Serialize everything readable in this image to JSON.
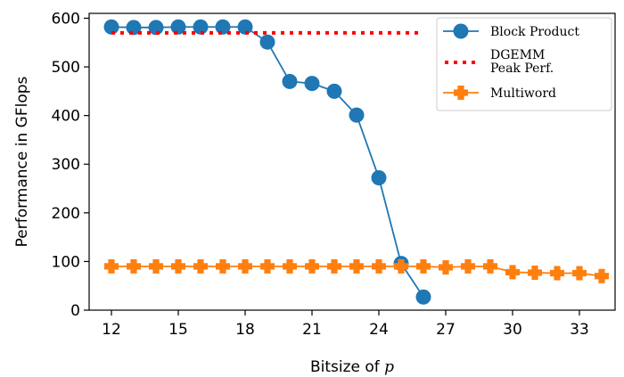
{
  "chart_data": {
    "type": "line",
    "xlabel_text": "Bitsize of ",
    "xlabel_var": "p",
    "ylabel": "Performance in GFlops",
    "xlim": [
      11,
      34.6
    ],
    "ylim": [
      0,
      610
    ],
    "xticks": [
      12,
      15,
      18,
      21,
      24,
      27,
      30,
      33
    ],
    "yticks": [
      0,
      100,
      200,
      300,
      400,
      500,
      600
    ],
    "grid": false,
    "legend_position": "top-right",
    "series": [
      {
        "name": "Block Product",
        "color": "#1f77b4",
        "marker": "circle",
        "style": "solid",
        "x": [
          12,
          13,
          14,
          15,
          16,
          17,
          18,
          19,
          20,
          21,
          22,
          23,
          24,
          25,
          26
        ],
        "y": [
          582,
          581,
          581,
          582,
          582,
          582,
          582,
          551,
          470,
          466,
          450,
          401,
          272,
          96,
          27
        ]
      },
      {
        "name_lines": [
          "DGEMM",
          "Peak Perf."
        ],
        "color": "#ff0000",
        "marker": "none",
        "style": "dotted",
        "x": [
          12,
          26
        ],
        "y": [
          570,
          570
        ]
      },
      {
        "name": "Multiword",
        "color": "#ff7f0e",
        "marker": "plus",
        "style": "solid",
        "x": [
          12,
          13,
          14,
          15,
          16,
          17,
          18,
          19,
          20,
          21,
          22,
          23,
          24,
          25,
          26,
          27,
          28,
          29,
          30,
          31,
          32,
          33,
          34
        ],
        "y": [
          90,
          90,
          90,
          90,
          90,
          90,
          90,
          90,
          90,
          90,
          90,
          90,
          90,
          90,
          90,
          88,
          90,
          90,
          78,
          77,
          76,
          76,
          70
        ]
      }
    ]
  }
}
